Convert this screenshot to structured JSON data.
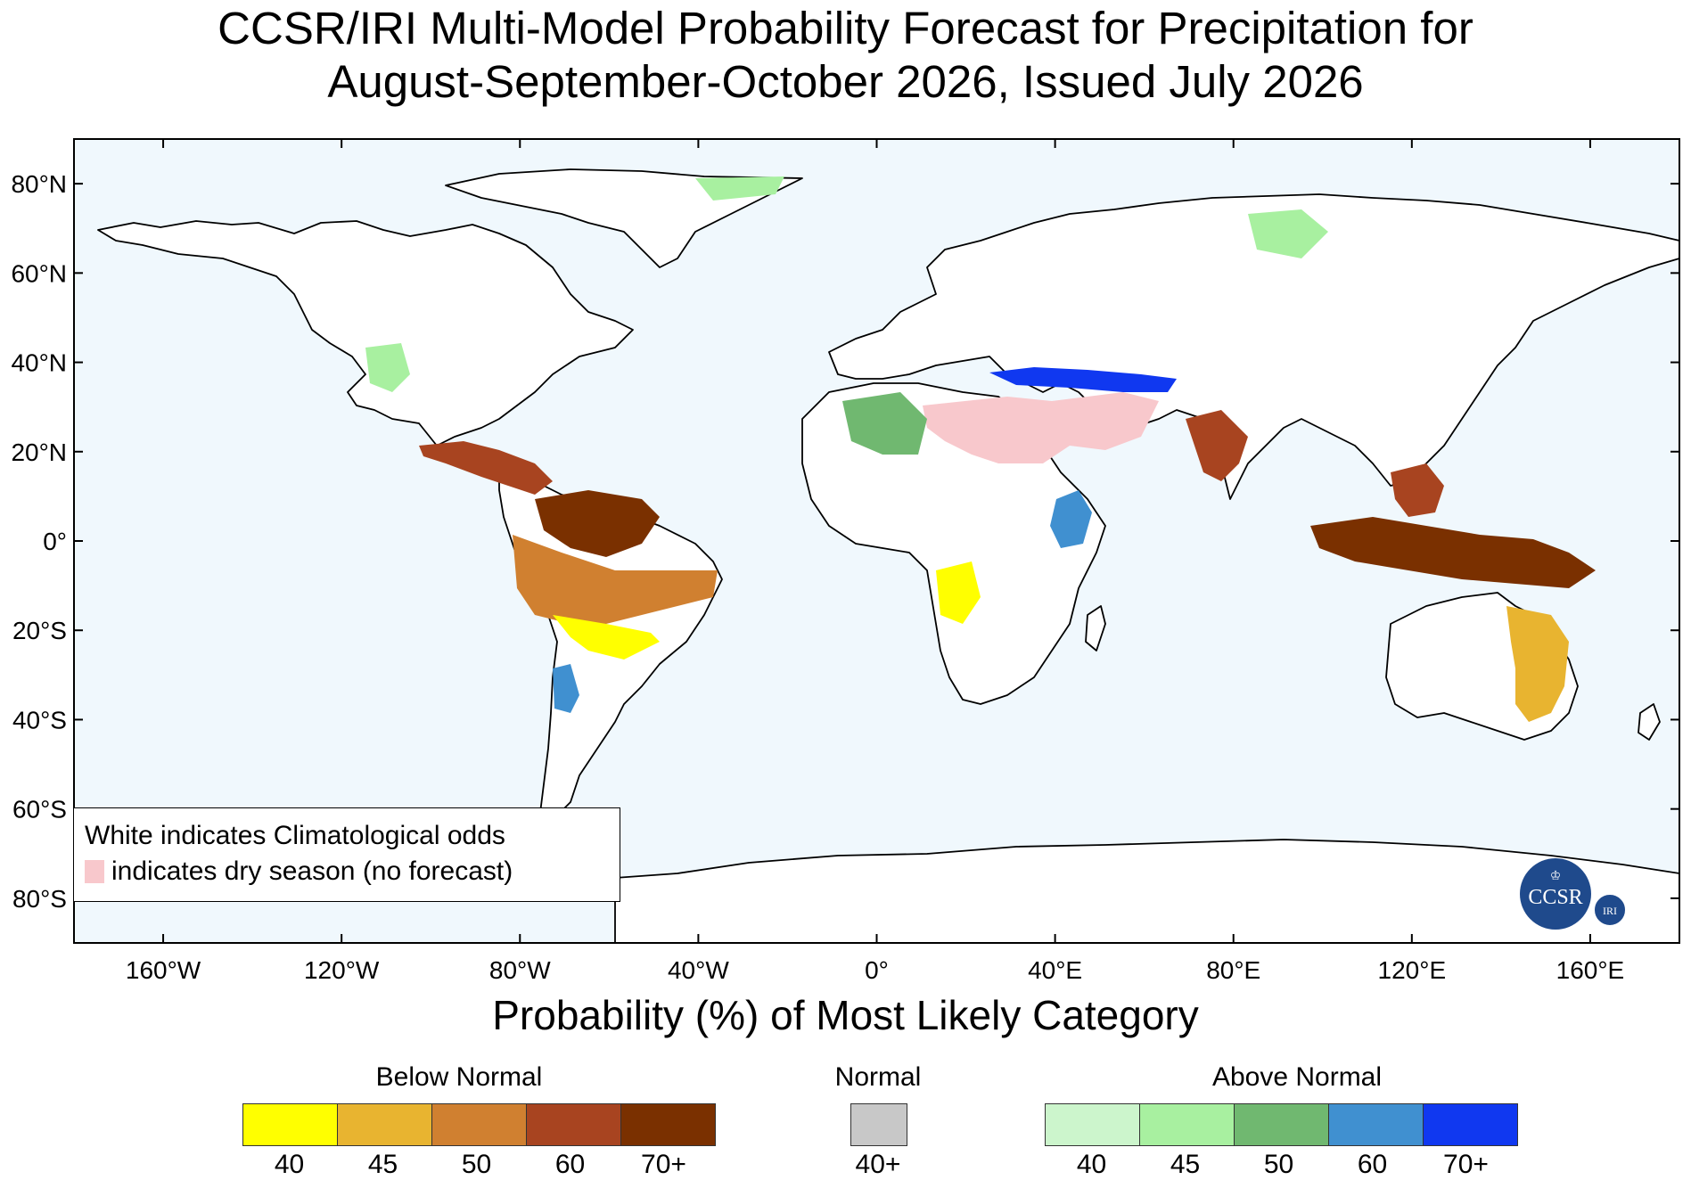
{
  "title": {
    "line1": "CCSR/IRI Multi-Model Probability Forecast for Precipitation for",
    "line2": "August-September-October 2026, Issued July 2026"
  },
  "map": {
    "lat_labels": [
      "80°N",
      "60°N",
      "40°N",
      "20°N",
      "0°",
      "20°S",
      "40°S",
      "60°S",
      "80°S"
    ],
    "lon_labels": [
      "160°W",
      "120°W",
      "80°W",
      "40°W",
      "0°",
      "40°E",
      "80°E",
      "120°E",
      "160°E"
    ],
    "ocean_color": "#f0f8fd",
    "land_color": "#ffffff"
  },
  "legend_box": {
    "line1": "White indicates Climatological odds",
    "line2": "indicates dry season (no forecast)",
    "dry_color": "#f8c8cc"
  },
  "colorbar_title": "Probability (%) of Most Likely Category",
  "categories": [
    {
      "name": "Below Normal",
      "colors": [
        "#ffff00",
        "#e8b430",
        "#d08030",
        "#a84420",
        "#7a3000"
      ],
      "labels": [
        "40",
        "45",
        "50",
        "60",
        "70+"
      ]
    },
    {
      "name": "Normal",
      "colors": [
        "#c8c8c8"
      ],
      "labels": [
        "40+"
      ]
    },
    {
      "name": "Above Normal",
      "colors": [
        "#ccf5cc",
        "#a8f0a0",
        "#70b870",
        "#4090d0",
        "#1038f0"
      ],
      "labels": [
        "40",
        "45",
        "50",
        "60",
        "70+"
      ]
    }
  ],
  "logo": {
    "main_text": "CCSR",
    "badge_text": "IRI"
  }
}
